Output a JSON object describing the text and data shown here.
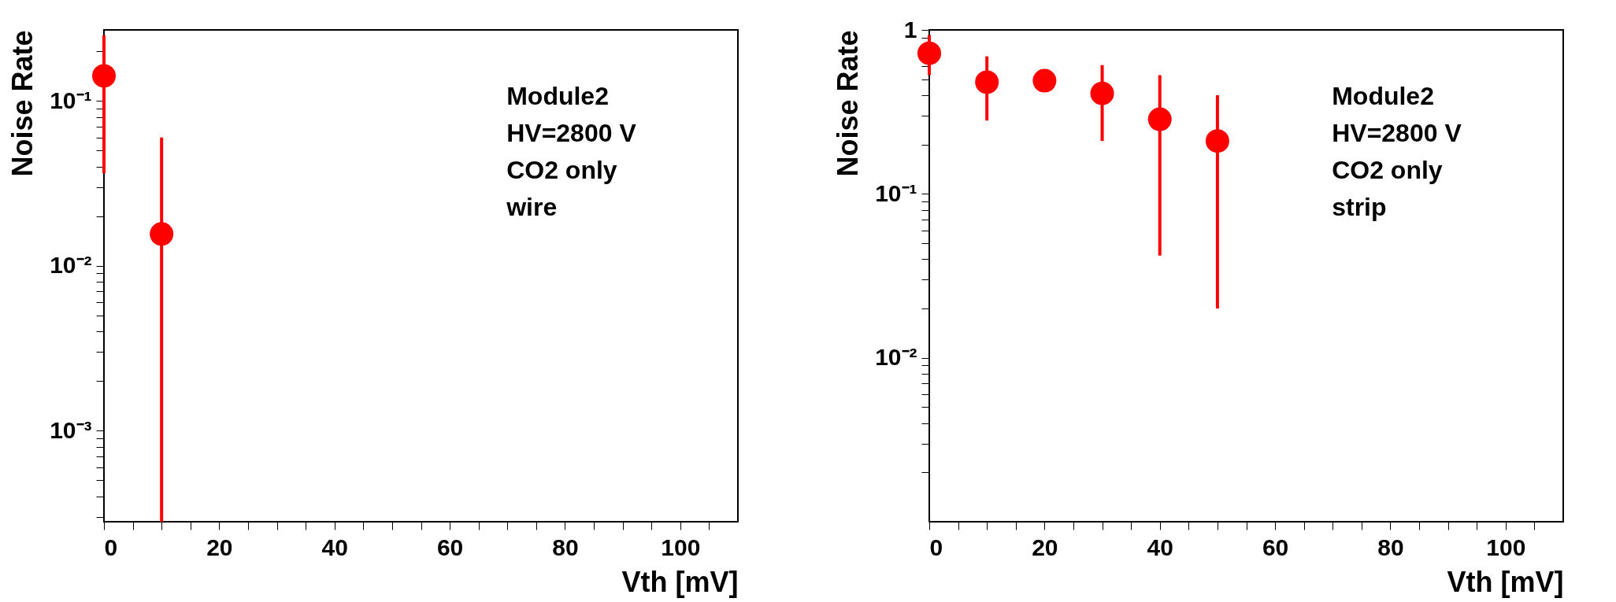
{
  "chart_data": [
    {
      "type": "scatter",
      "xlabel": "Vth [mV]",
      "ylabel": "Noise Rate",
      "log": "y",
      "grid": false,
      "marker": "circle",
      "x": [
        0,
        10
      ],
      "xlim": [
        0,
        110
      ],
      "xticks": [
        0,
        {
          "value": 5,
          "label": null
        },
        {
          "value": 10,
          "label": null
        },
        {
          "value": 15,
          "label": null
        },
        20,
        {
          "value": 25,
          "label": null
        },
        {
          "value": 30,
          "label": null
        },
        {
          "value": 35,
          "label": null
        },
        40,
        {
          "value": 45,
          "label": null
        },
        {
          "value": 50,
          "label": null
        },
        {
          "value": 55,
          "label": null
        },
        60,
        {
          "value": 65,
          "label": null
        },
        {
          "value": 70,
          "label": null
        },
        {
          "value": 75,
          "label": null
        },
        80,
        {
          "value": 85,
          "label": null
        },
        {
          "value": 90,
          "label": null
        },
        {
          "value": 95,
          "label": null
        },
        100,
        {
          "value": 105,
          "label": null
        }
      ],
      "ylim": [
        0.00028,
        0.27
      ],
      "yticks": [
        {
          "value": 0.0003,
          "label": null
        },
        {
          "value": 0.0004,
          "label": null
        },
        {
          "value": 0.0005,
          "label": null
        },
        {
          "value": 0.0006,
          "label": null
        },
        {
          "value": 0.0007,
          "label": null
        },
        {
          "value": 0.0008,
          "label": null
        },
        {
          "value": 0.0009,
          "label": null
        },
        {
          "value": 0.001,
          "label": "10⁻³"
        },
        {
          "value": 0.002,
          "label": null
        },
        {
          "value": 0.003,
          "label": null
        },
        {
          "value": 0.004,
          "label": null
        },
        {
          "value": 0.005,
          "label": null
        },
        {
          "value": 0.006,
          "label": null
        },
        {
          "value": 0.007,
          "label": null
        },
        {
          "value": 0.008,
          "label": null
        },
        {
          "value": 0.009,
          "label": null
        },
        {
          "value": 0.01,
          "label": "10⁻²"
        },
        {
          "value": 0.02,
          "label": null
        },
        {
          "value": 0.03,
          "label": null
        },
        {
          "value": 0.04,
          "label": null
        },
        {
          "value": 0.05,
          "label": null
        },
        {
          "value": 0.06,
          "label": null
        },
        {
          "value": 0.07,
          "label": null
        },
        {
          "value": 0.08,
          "label": null
        },
        {
          "value": 0.09,
          "label": null
        },
        {
          "value": 0.1,
          "label": "10⁻¹"
        },
        {
          "value": 0.2,
          "label": null
        }
      ],
      "series": [
        {
          "color": "#ff0000",
          "values": [
            0.142,
            0.0156
          ],
          "errors": [
            [
              0.0364,
              0.25
            ],
            [
              0.00028,
              0.06
            ]
          ]
        }
      ],
      "annotations": [
        "Module2",
        "HV=2800 V",
        "CO2 only",
        "wire"
      ]
    },
    {
      "type": "scatter",
      "xlabel": "Vth [mV]",
      "ylabel": "Noise Rate",
      "log": "y",
      "grid": false,
      "marker": "circle",
      "x": [
        0,
        10,
        20,
        30,
        40,
        50
      ],
      "xlim": [
        0,
        110
      ],
      "xticks": [
        0,
        {
          "value": 5,
          "label": null
        },
        {
          "value": 10,
          "label": null
        },
        {
          "value": 15,
          "label": null
        },
        20,
        {
          "value": 25,
          "label": null
        },
        {
          "value": 30,
          "label": null
        },
        {
          "value": 35,
          "label": null
        },
        40,
        {
          "value": 45,
          "label": null
        },
        {
          "value": 50,
          "label": null
        },
        {
          "value": 55,
          "label": null
        },
        60,
        {
          "value": 65,
          "label": null
        },
        {
          "value": 70,
          "label": null
        },
        {
          "value": 75,
          "label": null
        },
        80,
        {
          "value": 85,
          "label": null
        },
        {
          "value": 90,
          "label": null
        },
        {
          "value": 95,
          "label": null
        },
        100,
        {
          "value": 105,
          "label": null
        }
      ],
      "ylim": [
        0.001,
        1
      ],
      "yticks": [
        {
          "value": 0.002,
          "label": null
        },
        {
          "value": 0.003,
          "label": null
        },
        {
          "value": 0.004,
          "label": null
        },
        {
          "value": 0.005,
          "label": null
        },
        {
          "value": 0.006,
          "label": null
        },
        {
          "value": 0.007,
          "label": null
        },
        {
          "value": 0.008,
          "label": null
        },
        {
          "value": 0.009,
          "label": null
        },
        {
          "value": 0.01,
          "label": "10⁻²"
        },
        {
          "value": 0.02,
          "label": null
        },
        {
          "value": 0.03,
          "label": null
        },
        {
          "value": 0.04,
          "label": null
        },
        {
          "value": 0.05,
          "label": null
        },
        {
          "value": 0.06,
          "label": null
        },
        {
          "value": 0.07,
          "label": null
        },
        {
          "value": 0.08,
          "label": null
        },
        {
          "value": 0.09,
          "label": null
        },
        {
          "value": 0.1,
          "label": "10⁻¹"
        },
        {
          "value": 0.2,
          "label": null
        },
        {
          "value": 0.3,
          "label": null
        },
        {
          "value": 0.4,
          "label": null
        },
        {
          "value": 0.5,
          "label": null
        },
        {
          "value": 0.6,
          "label": null
        },
        {
          "value": 0.7,
          "label": null
        },
        {
          "value": 0.8,
          "label": null
        },
        {
          "value": 0.9,
          "label": null
        },
        1
      ],
      "series": [
        {
          "color": "#ff0000",
          "values": [
            0.72,
            0.48,
            0.49,
            0.41,
            0.285,
            0.21
          ],
          "errors": [
            [
              0.53,
              0.93
            ],
            [
              0.28,
              0.69
            ],
            null,
            [
              0.21,
              0.61
            ],
            [
              0.042,
              0.53
            ],
            [
              0.02,
              0.4
            ]
          ]
        }
      ],
      "annotations": [
        "Module2",
        "HV=2800 V",
        "CO2 only",
        "strip"
      ]
    }
  ]
}
